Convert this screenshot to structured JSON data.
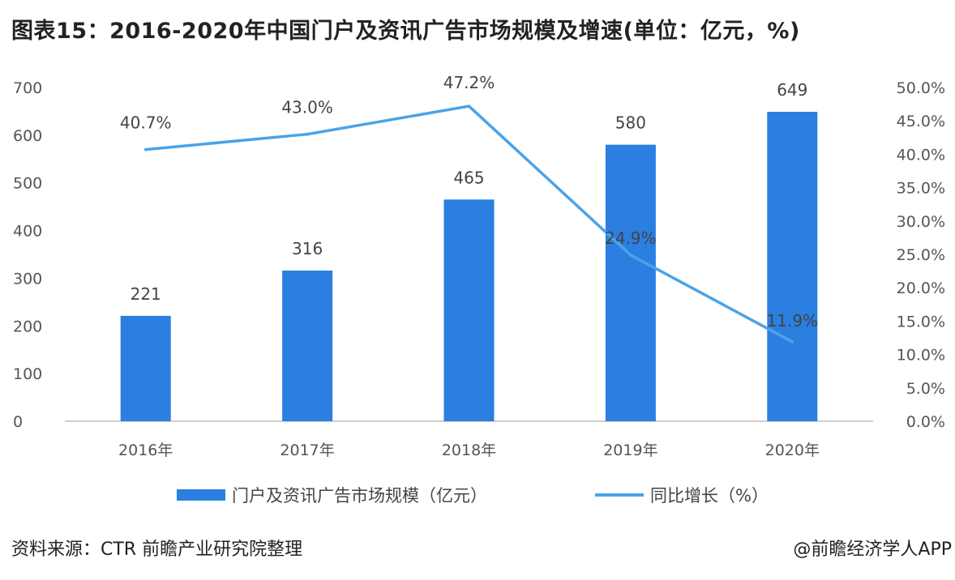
{
  "title": "图表15：2016-2020年中国门户及资讯广告市场规模及增速(单位：亿元，%)",
  "source": "资料来源：CTR 前瞻产业研究院整理",
  "credit": "@前瞻经济学人APP",
  "colors": {
    "bar": "#2a7fe0",
    "line": "#4aa3e8"
  },
  "chart_data": {
    "type": "bar+line",
    "categories": [
      "2016年",
      "2017年",
      "2018年",
      "2019年",
      "2020年"
    ],
    "series": [
      {
        "name": "门户及资讯广告市场规模（亿元）",
        "type": "bar",
        "axis": "left",
        "values": [
          221,
          316,
          465,
          580,
          649
        ],
        "labels": [
          "221",
          "316",
          "465",
          "580",
          "649"
        ]
      },
      {
        "name": "同比增长（%）",
        "type": "line",
        "axis": "right",
        "values": [
          40.7,
          43.0,
          47.2,
          24.9,
          11.9
        ],
        "labels": [
          "40.7%",
          "43.0%",
          "47.2%",
          "24.9%",
          "11.9%"
        ]
      }
    ],
    "y_left": {
      "min": 0,
      "max": 700,
      "ticks": [
        "0",
        "100",
        "200",
        "300",
        "400",
        "500",
        "600",
        "700"
      ]
    },
    "y_right": {
      "min": 0,
      "max": 50,
      "ticks": [
        "0.0%",
        "5.0%",
        "10.0%",
        "15.0%",
        "20.0%",
        "25.0%",
        "30.0%",
        "35.0%",
        "40.0%",
        "45.0%",
        "50.0%"
      ]
    },
    "legend_position": "bottom",
    "grid": false
  }
}
